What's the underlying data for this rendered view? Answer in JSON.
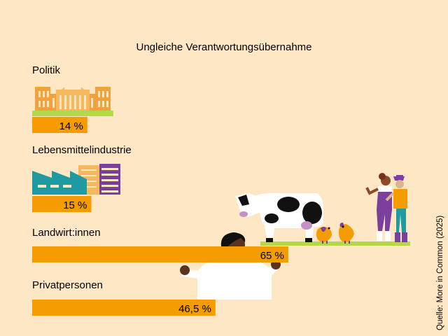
{
  "chart_data": {
    "type": "bar",
    "orientation": "horizontal",
    "title": "Ungleiche Verantwortungsübernahme",
    "categories": [
      "Politik",
      "Lebensmittelindustrie",
      "Landwirt:innen",
      "Privatpersonen"
    ],
    "values": [
      14,
      15,
      65,
      46.5
    ],
    "value_labels": [
      "14 %",
      "15 %",
      "65 %",
      "46,5 %"
    ],
    "unit": "%",
    "xlim": [
      0,
      100
    ],
    "grid": false,
    "bar_color": "#f59c00",
    "source": "Quelle: More in Common (2025)"
  },
  "illustrations": [
    {
      "name": "parliament-building-icon",
      "category": "Politik"
    },
    {
      "name": "factory-icon",
      "category": "Lebensmittelindustrie"
    },
    {
      "name": "farm-scene-icon",
      "category": "Landwirt:innen"
    },
    {
      "name": "person-icon",
      "category": "Privatpersonen"
    }
  ]
}
